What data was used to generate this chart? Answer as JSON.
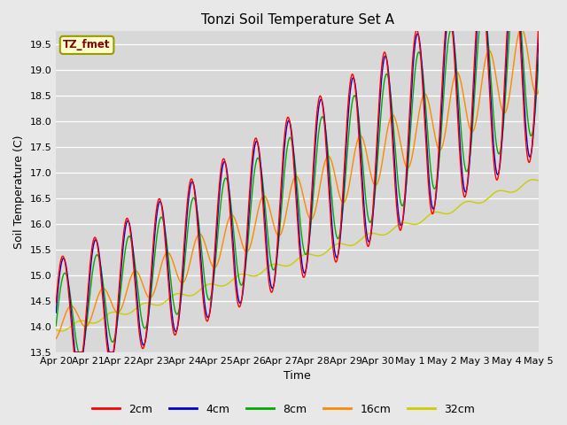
{
  "title": "Tonzi Soil Temperature Set A",
  "xlabel": "Time",
  "ylabel": "Soil Temperature (C)",
  "ylim": [
    13.5,
    19.75
  ],
  "fig_bg_color": "#e8e8e8",
  "plot_bg_color": "#d8d8d8",
  "legend_label": "TZ_fmet",
  "series_colors": {
    "2cm": "#ff0000",
    "4cm": "#0000cc",
    "8cm": "#00aa00",
    "16cm": "#ff8800",
    "32cm": "#cccc00"
  },
  "x_tick_labels": [
    "Apr 20",
    "Apr 21",
    "Apr 22",
    "Apr 23",
    "Apr 24",
    "Apr 25",
    "Apr 26",
    "Apr 27",
    "Apr 28",
    "Apr 29",
    "Apr 30",
    "May 1",
    "May 2",
    "May 3",
    "May 4",
    "May 5"
  ],
  "n_days": 15,
  "pts_per_day": 96
}
